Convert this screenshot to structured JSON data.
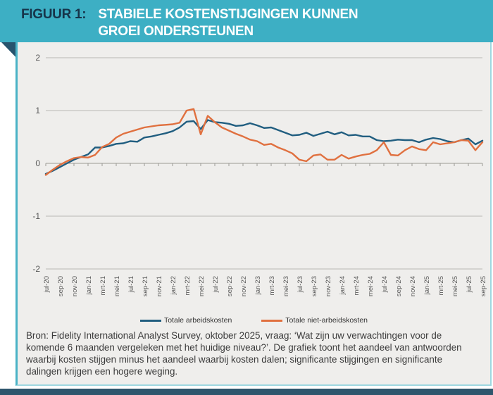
{
  "figure": {
    "label": "FIGUUR 1:",
    "title_line1": "STABIELE KOSTENSTIJGINGEN KUNNEN",
    "title_line2": "GROEI ONDERSTEUNEN"
  },
  "colors": {
    "header_bg": "#3dafc4",
    "header_label_text": "#16344a",
    "header_title_text": "#ffffff",
    "fold": "#27536d",
    "panel_bg": "#efeeec",
    "panel_border": "#9ed7e0",
    "accent_left_border": "#49b2c6",
    "bottom_bar": "#2e566d",
    "grid": "#bab8b4",
    "zero_axis": "#9b9995",
    "tick_text": "#595959",
    "labor_line": "#215e80",
    "nonlabor_line": "#e0703f"
  },
  "chart_data": {
    "type": "line",
    "x": [
      "jul-20",
      "aug-20",
      "sep-20",
      "okt-20",
      "nov-20",
      "dec-20",
      "jan-21",
      "feb-21",
      "mrt-21",
      "apr-21",
      "mei-21",
      "jun-21",
      "jul-21",
      "aug-21",
      "sep-21",
      "okt-21",
      "nov-21",
      "dec-21",
      "jan-22",
      "feb-22",
      "mrt-22",
      "apr-22",
      "mei-22",
      "jun-22",
      "jul-22",
      "aug-22",
      "sep-22",
      "okt-22",
      "nov-22",
      "dec-22",
      "jan-23",
      "feb-23",
      "mrt-23",
      "apr-23",
      "mei-23",
      "jun-23",
      "jul-23",
      "aug-23",
      "sep-23",
      "okt-23",
      "nov-23",
      "dec-23",
      "jan-24",
      "feb-24",
      "mrt-24",
      "apr-24",
      "mei-24",
      "jun-24",
      "jul-24",
      "aug-24",
      "sep-24",
      "okt-24",
      "nov-24",
      "dec-24",
      "jan-25",
      "feb-25",
      "mrt-25",
      "apr-25",
      "mei-25",
      "jun-25",
      "jul-25",
      "aug-25",
      "sep-25"
    ],
    "x_tick_labels": [
      "jul-20",
      "sep-20",
      "nov-20",
      "jan-21",
      "mrt-21",
      "mei-21",
      "jul-21",
      "sep-21",
      "nov-21",
      "jan-22",
      "mrt-22",
      "mei-22",
      "jul-22",
      "sep-22",
      "nov-22",
      "jan-23",
      "mrt-23",
      "mei-23",
      "jul-23",
      "sep-23",
      "nov-23",
      "jan-24",
      "mrt-24",
      "mei-24",
      "jul-24",
      "sep-24",
      "nov-24",
      "jan-25",
      "mrt-25",
      "mei-25",
      "jul-25",
      "sep-25"
    ],
    "x_label_every": 2,
    "series": [
      {
        "name": "Totale arbeidskosten",
        "color": "#215e80",
        "values": [
          -0.2,
          -0.14,
          -0.07,
          0.0,
          0.07,
          0.12,
          0.17,
          0.3,
          0.3,
          0.33,
          0.37,
          0.38,
          0.42,
          0.41,
          0.49,
          0.51,
          0.54,
          0.57,
          0.61,
          0.68,
          0.79,
          0.8,
          0.65,
          0.82,
          0.78,
          0.77,
          0.75,
          0.71,
          0.72,
          0.76,
          0.72,
          0.67,
          0.68,
          0.63,
          0.58,
          0.53,
          0.54,
          0.58,
          0.52,
          0.56,
          0.6,
          0.55,
          0.59,
          0.53,
          0.54,
          0.51,
          0.51,
          0.44,
          0.42,
          0.43,
          0.45,
          0.44,
          0.44,
          0.4,
          0.45,
          0.48,
          0.46,
          0.42,
          0.4,
          0.44,
          0.47,
          0.36,
          0.43
        ]
      },
      {
        "name": "Totale niet-arbeidskosten",
        "color": "#e0703f",
        "values": [
          -0.22,
          -0.12,
          -0.03,
          0.04,
          0.1,
          0.12,
          0.11,
          0.16,
          0.31,
          0.37,
          0.49,
          0.56,
          0.6,
          0.64,
          0.68,
          0.7,
          0.72,
          0.73,
          0.74,
          0.77,
          1.0,
          1.03,
          0.55,
          0.9,
          0.78,
          0.68,
          0.62,
          0.56,
          0.51,
          0.45,
          0.42,
          0.35,
          0.37,
          0.3,
          0.25,
          0.19,
          0.07,
          0.04,
          0.15,
          0.17,
          0.07,
          0.07,
          0.16,
          0.09,
          0.13,
          0.16,
          0.18,
          0.25,
          0.4,
          0.16,
          0.15,
          0.25,
          0.32,
          0.27,
          0.25,
          0.4,
          0.36,
          0.38,
          0.4,
          0.44,
          0.43,
          0.25,
          0.4
        ]
      }
    ],
    "ylim": [
      -2,
      2
    ],
    "yticks": [
      2,
      1,
      0,
      -1,
      -2
    ],
    "grid": true,
    "legend_position": "bottom"
  },
  "source": {
    "text": "Bron: Fidelity International Analyst Survey, oktober 2025, vraag: ‘Wat zijn uw verwachtingen voor de komende 6 maanden vergeleken met het huidige niveau?’. De grafiek toont het aandeel van antwoorden waarbij kosten stijgen minus het aandeel waarbij kosten dalen; significante stijgingen en significante dalingen krijgen een hogere weging."
  }
}
